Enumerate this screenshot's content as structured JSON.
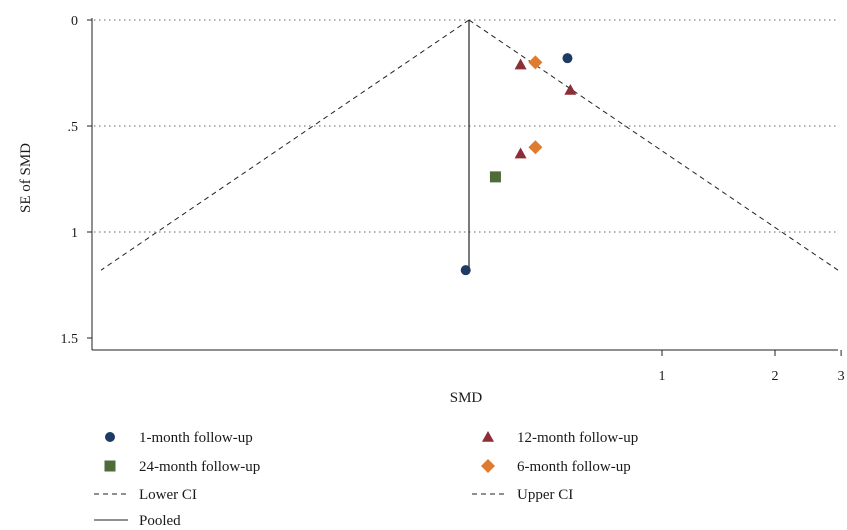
{
  "chart_data": {
    "type": "scatter",
    "title": "",
    "xlabel": "SMD",
    "ylabel": "SE of SMD",
    "x_scale": "log",
    "y_reversed": true,
    "xlim": [
      0.177,
      3.05
    ],
    "ylim": [
      0,
      1.5
    ],
    "y_ticks": [
      {
        "value": 0,
        "label": "0"
      },
      {
        "value": 0.5,
        "label": ".5"
      },
      {
        "value": 1,
        "label": "1"
      },
      {
        "value": 1.5,
        "label": "1.5"
      }
    ],
    "x_ticks": [
      {
        "value": 1,
        "label": "1"
      },
      {
        "value": 2,
        "label": "2"
      },
      {
        "value": 3,
        "label": "3"
      }
    ],
    "grid": "horizontal dotted at y ticks",
    "pooled_smd": 0.49,
    "ci_se_max": 1.18,
    "series": [
      {
        "name": "1-month follow-up",
        "marker": "circle",
        "color": "#1f3a63",
        "points": [
          {
            "x": 0.56,
            "y": 0.18
          },
          {
            "x": 0.3,
            "y": 1.18
          }
        ]
      },
      {
        "name": "12-month follow-up",
        "marker": "triangle",
        "color": "#8b2e35",
        "points": [
          {
            "x": 0.42,
            "y": 0.21
          },
          {
            "x": 0.57,
            "y": 0.33
          },
          {
            "x": 0.42,
            "y": 0.63
          }
        ]
      },
      {
        "name": "24-month follow-up",
        "marker": "square",
        "color": "#4e6b3a",
        "points": [
          {
            "x": 0.36,
            "y": 0.74
          }
        ]
      },
      {
        "name": "6-month follow-up",
        "marker": "diamond",
        "color": "#e07a2e",
        "points": [
          {
            "x": 0.46,
            "y": 0.2
          },
          {
            "x": 0.46,
            "y": 0.6
          }
        ]
      }
    ],
    "lines": [
      {
        "name": "Lower CI",
        "style": "dashed"
      },
      {
        "name": "Upper CI",
        "style": "dashed"
      },
      {
        "name": "Pooled",
        "style": "solid"
      }
    ],
    "legend_position": "bottom"
  }
}
